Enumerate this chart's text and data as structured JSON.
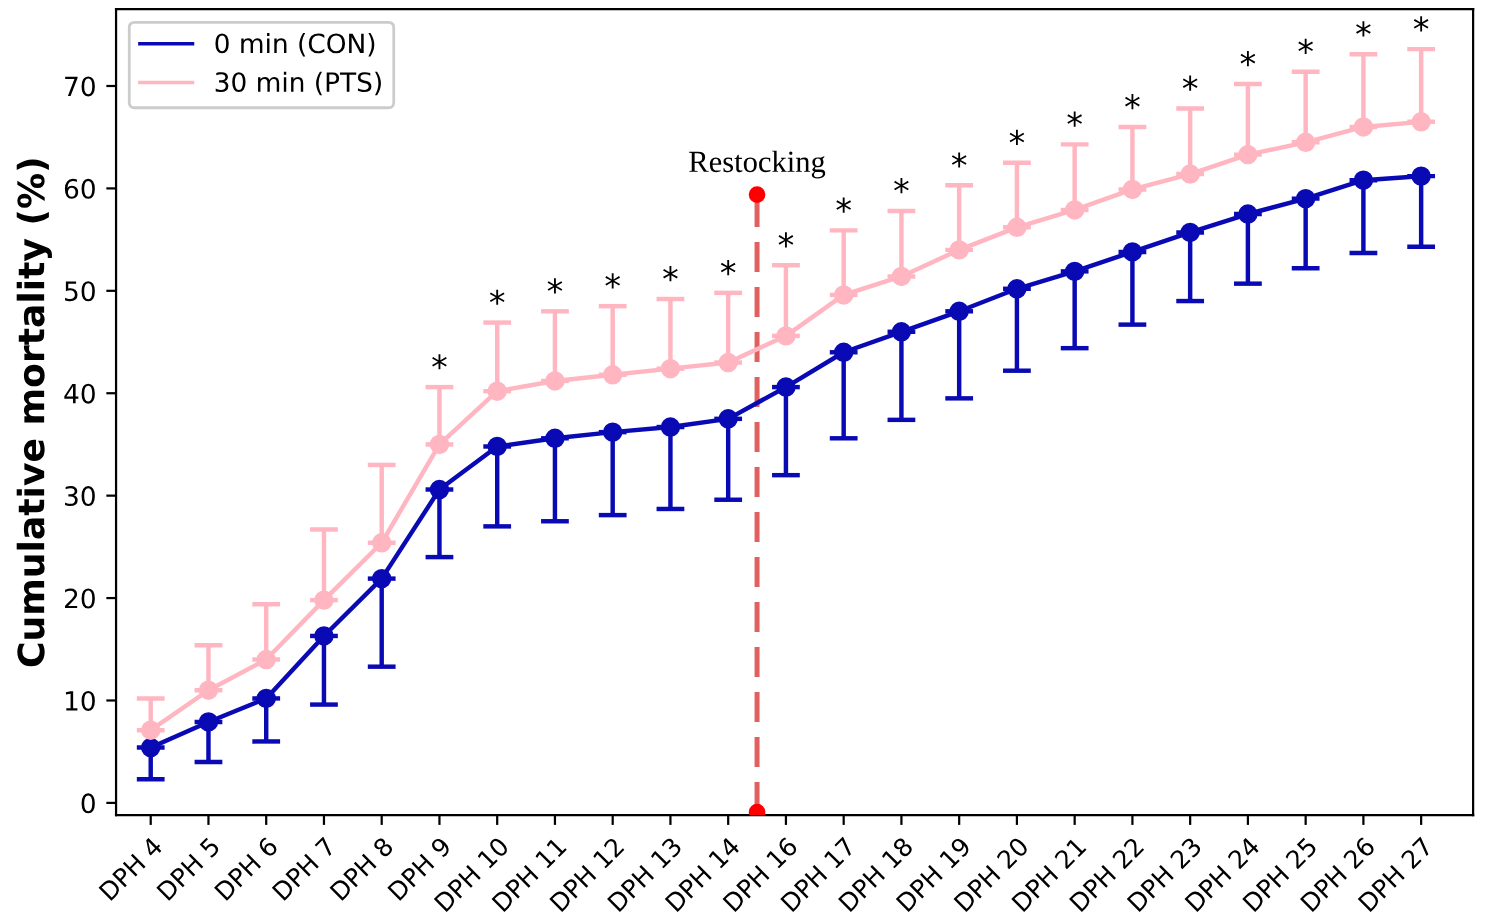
{
  "chart_data": {
    "type": "line",
    "ylabel": "Cumulative mortality (%)",
    "categories": [
      "DPH 4",
      "DPH 5",
      "DPH 6",
      "DPH 7",
      "DPH 8",
      "DPH 9",
      "DPH 10",
      "DPH 11",
      "DPH 12",
      "DPH 13",
      "DPH 14",
      "DPH 16",
      "DPH 17",
      "DPH 18",
      "DPH 19",
      "DPH 20",
      "DPH 21",
      "DPH 22",
      "DPH 23",
      "DPH 24",
      "DPH 25",
      "DPH 26",
      "DPH 27"
    ],
    "series": [
      {
        "name": "0 min (CON)",
        "color": "#0a0ab4",
        "values": [
          5.4,
          7.9,
          10.2,
          16.3,
          21.9,
          30.6,
          34.8,
          35.6,
          36.2,
          36.7,
          37.5,
          40.6,
          44,
          46,
          48,
          50.2,
          51.9,
          53.8,
          55.7,
          57.5,
          59,
          60.8,
          61.2
        ],
        "errors": [
          [
            2.3,
            5.4
          ],
          [
            4,
            7.9
          ],
          [
            6,
            10.2
          ],
          [
            9.6,
            16.3
          ],
          [
            13.3,
            21.9
          ],
          [
            24,
            30.6
          ],
          [
            27,
            34.8
          ],
          [
            27.5,
            35.6
          ],
          [
            28.1,
            36.2
          ],
          [
            28.7,
            36.7
          ],
          [
            29.6,
            37.5
          ],
          [
            32,
            40.6
          ],
          [
            35.6,
            44
          ],
          [
            37.4,
            46
          ],
          [
            39.5,
            48
          ],
          [
            42.2,
            50.2
          ],
          [
            44.4,
            51.9
          ],
          [
            46.7,
            53.8
          ],
          [
            49,
            55.7
          ],
          [
            50.7,
            57.5
          ],
          [
            52.2,
            59
          ],
          [
            53.7,
            60.8
          ],
          [
            54.3,
            61.2
          ]
        ]
      },
      {
        "name": "30 min (PTS)",
        "color": "#ffb6c1",
        "values": [
          7.1,
          11,
          14,
          19.8,
          25.4,
          35,
          40.2,
          41.2,
          41.8,
          42.4,
          43,
          45.6,
          49.6,
          51.4,
          54,
          56.2,
          57.9,
          59.9,
          61.4,
          63.3,
          64.5,
          66,
          66.5
        ],
        "errors": [
          [
            7.1,
            10.2
          ],
          [
            11,
            15.4
          ],
          [
            14,
            19.4
          ],
          [
            19.8,
            26.7
          ],
          [
            25.4,
            33
          ],
          [
            35,
            40.6
          ],
          [
            40.2,
            46.9
          ],
          [
            41.2,
            48
          ],
          [
            41.8,
            48.5
          ],
          [
            42.4,
            49.2
          ],
          [
            43,
            49.8
          ],
          [
            45.6,
            52.5
          ],
          [
            49.6,
            55.9
          ],
          [
            51.4,
            57.8
          ],
          [
            54,
            60.3
          ],
          [
            56.2,
            62.5
          ],
          [
            57.9,
            64.3
          ],
          [
            59.9,
            66
          ],
          [
            61.4,
            67.8
          ],
          [
            63.3,
            70.2
          ],
          [
            64.5,
            71.4
          ],
          [
            66,
            73.1
          ],
          [
            66.5,
            73.6
          ]
        ]
      }
    ],
    "ylim": [
      -1.2,
      77.5
    ],
    "yticks": [
      0,
      10,
      20,
      30,
      40,
      50,
      60,
      70
    ],
    "marker": "circle",
    "line_style": "solid",
    "grid": false,
    "legend": "top left",
    "annotations": [
      "Restocking",
      "*",
      "*",
      "*",
      "*",
      "*",
      "*",
      "*",
      "*",
      "*",
      "*",
      "*",
      "*",
      "*",
      "*",
      "*",
      "*",
      "*",
      "*"
    ]
  }
}
